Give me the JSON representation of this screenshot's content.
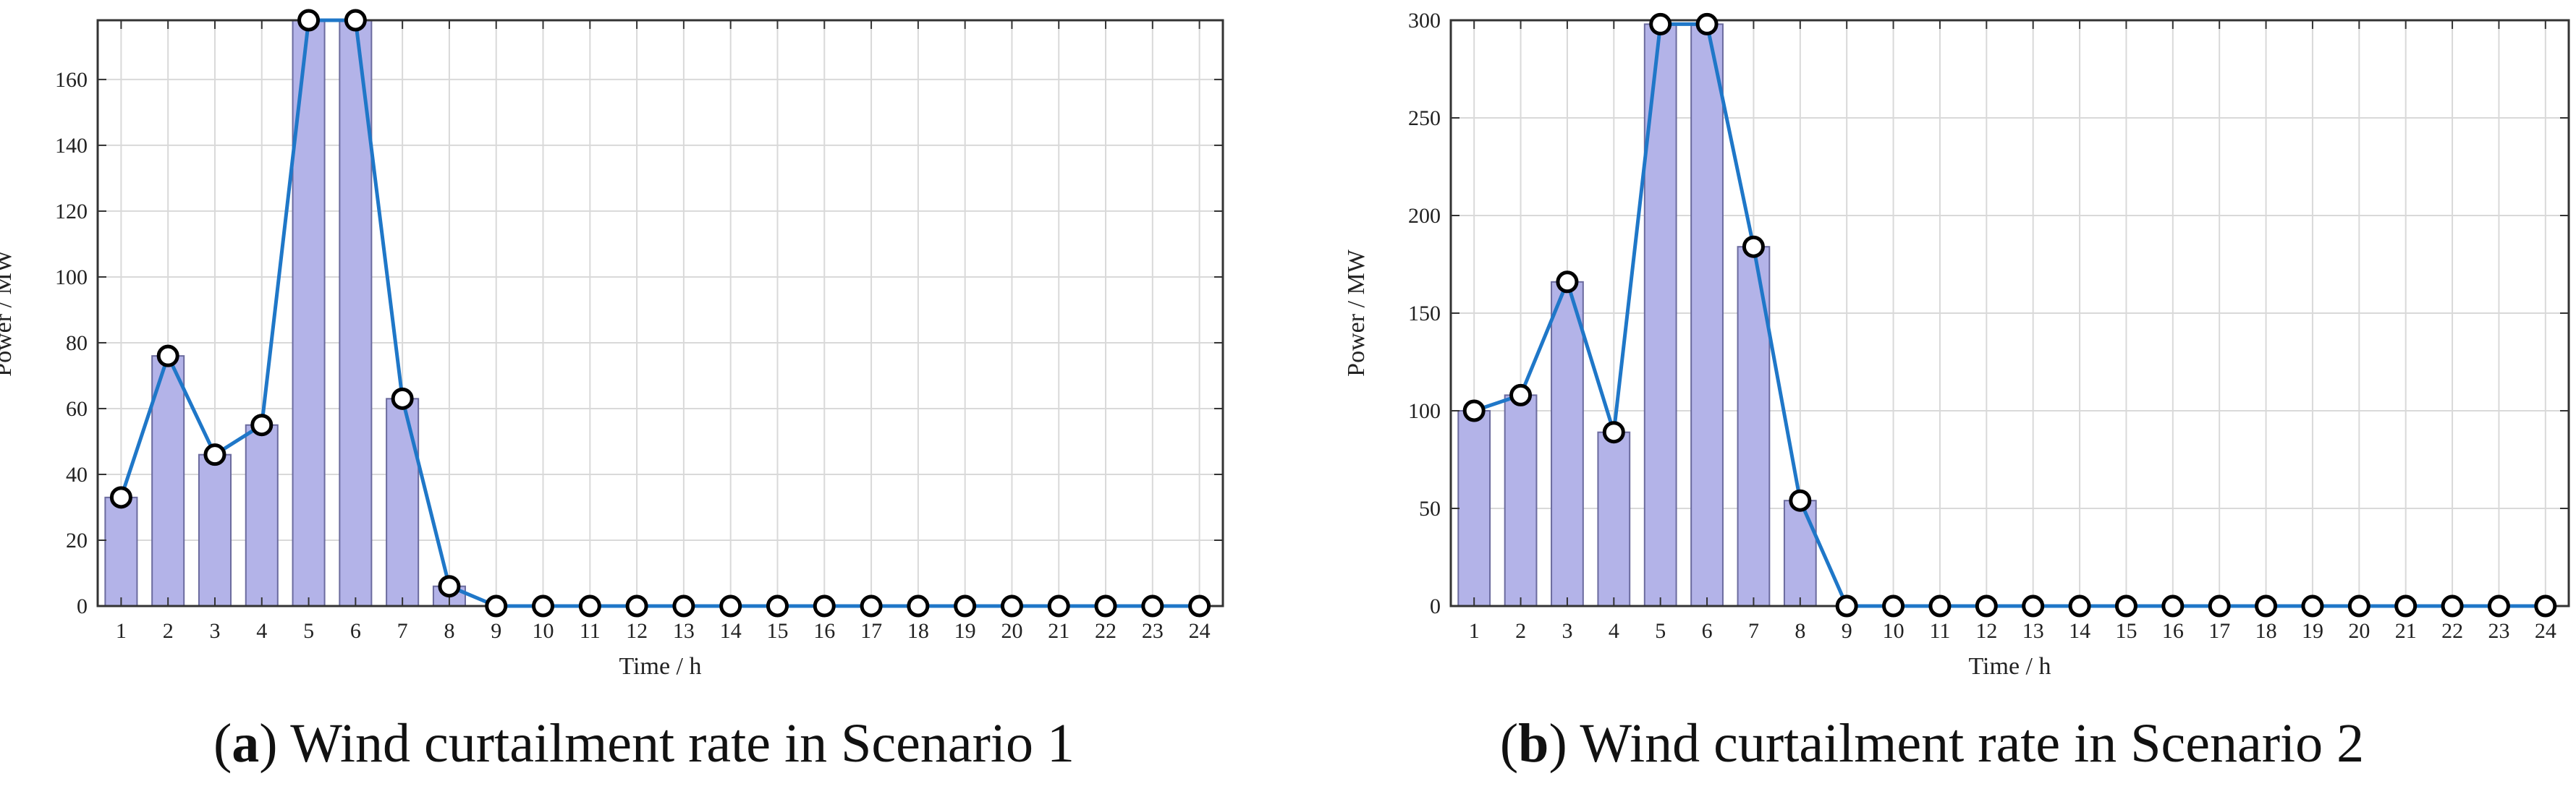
{
  "chart_data": [
    {
      "panel": "a",
      "type": "bar",
      "overlay": "line",
      "caption_letter": "a",
      "caption_text": "Wind curtailment rate in Scenario 1",
      "xlabel": "Time / h",
      "ylabel": "Power / MW",
      "categories": [
        "1",
        "2",
        "3",
        "4",
        "5",
        "6",
        "7",
        "8",
        "9",
        "10",
        "11",
        "12",
        "13",
        "14",
        "15",
        "16",
        "17",
        "18",
        "19",
        "20",
        "21",
        "22",
        "23",
        "24"
      ],
      "values": [
        33,
        76,
        46,
        55,
        178,
        178,
        63,
        6,
        0,
        0,
        0,
        0,
        0,
        0,
        0,
        0,
        0,
        0,
        0,
        0,
        0,
        0,
        0,
        0
      ],
      "ylim": [
        0,
        178
      ],
      "yticks": [
        0,
        20,
        40,
        60,
        80,
        100,
        120,
        140,
        160
      ],
      "grid": true
    },
    {
      "panel": "b",
      "type": "bar",
      "overlay": "line",
      "caption_letter": "b",
      "caption_text": "Wind curtailment rate in Scenario 2",
      "xlabel": "Time / h",
      "ylabel": "Power / MW",
      "categories": [
        "1",
        "2",
        "3",
        "4",
        "5",
        "6",
        "7",
        "8",
        "9",
        "10",
        "11",
        "12",
        "13",
        "14",
        "15",
        "16",
        "17",
        "18",
        "19",
        "20",
        "21",
        "22",
        "23",
        "24"
      ],
      "values": [
        100,
        108,
        166,
        89,
        298,
        298,
        184,
        54,
        0,
        0,
        0,
        0,
        0,
        0,
        0,
        0,
        0,
        0,
        0,
        0,
        0,
        0,
        0,
        0
      ],
      "ylim": [
        0,
        300
      ],
      "yticks": [
        0,
        50,
        100,
        150,
        200,
        250,
        300
      ],
      "grid": true
    }
  ],
  "colors": {
    "bar_fill": "#b3b3e8",
    "bar_stroke": "#6b6b9e",
    "line": "#1f77c8",
    "marker_fill": "#ffffff",
    "marker_stroke": "#000000",
    "grid": "#d9d9d9",
    "axis": "#333333"
  }
}
